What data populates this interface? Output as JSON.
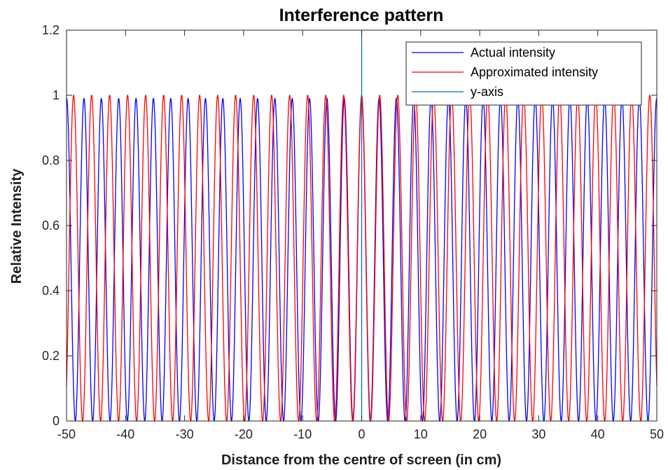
{
  "chart_data": {
    "type": "line",
    "title": "Interference pattern",
    "xlabel": "Distance from the centre of screen (in cm)",
    "ylabel": "Relative Intensity",
    "xlim": [
      -50,
      50
    ],
    "ylim": [
      0,
      1.2
    ],
    "xticks": [
      -50,
      -40,
      -30,
      -20,
      -10,
      0,
      10,
      20,
      30,
      40,
      50
    ],
    "yticks": [
      0,
      0.2,
      0.4,
      0.6,
      0.8,
      1,
      1.2
    ],
    "xtick_labels": [
      "-50",
      "-40",
      "-30",
      "-20",
      "-10",
      "0",
      "10",
      "20",
      "30",
      "40",
      "50"
    ],
    "ytick_labels": [
      "0",
      "0.2",
      "0.4",
      "0.6",
      "0.8",
      "1",
      "1.2"
    ],
    "grid": false,
    "legend_position": "top-right",
    "series": [
      {
        "name": "Actual intensity",
        "color": "#0000ff",
        "description": "cos^2 fringe pattern, peak ~1 at x=0, fringe spacing ~2.9 cm near centre, peaks ~0.99",
        "peak_x": [
          0,
          2.94,
          5.88,
          8.82,
          11.76,
          14.7,
          17.64,
          20.58,
          23.52,
          26.46,
          29.4,
          32.34,
          35.28,
          38.22,
          41.16,
          44.1,
          47.04
        ],
        "peak_value": 0.99
      },
      {
        "name": "Approximated intensity",
        "color": "#ff0000",
        "description": "cos^2 fringe pattern, peak 1 at x=0, fringe spacing ~3.05 cm",
        "peak_x": [
          0,
          3.05,
          6.1,
          9.15,
          12.2,
          15.25,
          18.3,
          21.35,
          24.4,
          27.45,
          30.5,
          33.55,
          36.6,
          39.65,
          42.7,
          45.75,
          48.8
        ],
        "peak_value": 1.0
      },
      {
        "name": "y-axis",
        "color": "#0072bd",
        "x": [
          0,
          0
        ],
        "y": [
          0,
          1.2
        ]
      }
    ]
  }
}
